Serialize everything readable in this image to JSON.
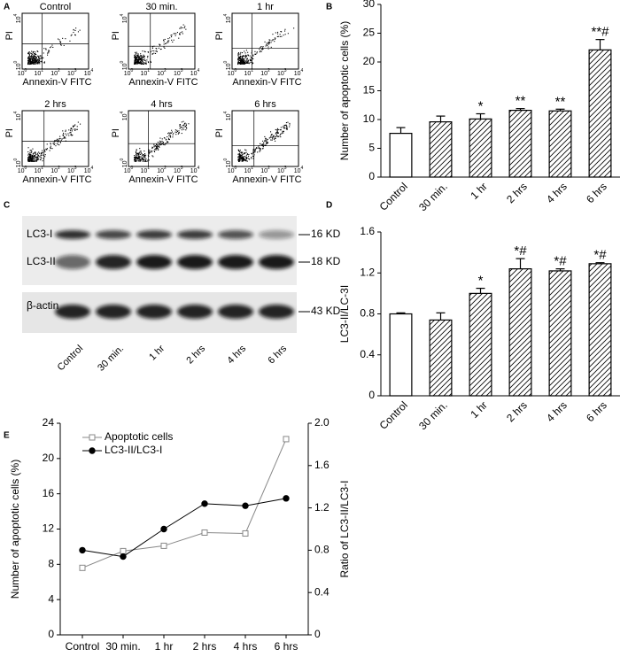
{
  "panel_labels": [
    "A",
    "B",
    "C",
    "D",
    "E"
  ],
  "flow_cytometry": {
    "plots": [
      "Control",
      "30 min.",
      "1 hr",
      "2 hrs",
      "4 hrs",
      "6 hrs"
    ],
    "x_label": "Annexin-V FITC",
    "y_label": "PI",
    "tick_base": "10",
    "tick_exponents": [
      "0",
      "1",
      "2",
      "3",
      "4"
    ]
  },
  "western_blot": {
    "bands": [
      "LC3-I",
      "LC3-II",
      "β-actin"
    ],
    "sizes": [
      "16 KD",
      "18 KD",
      "43 KD"
    ],
    "lanes": [
      "Control",
      "30 min.",
      "1 hr",
      "2 hrs",
      "4 hrs",
      "6 hrs"
    ]
  },
  "chart_data": [
    {
      "type": "bar",
      "ylabel": "Number of apoptotic cells (%)",
      "categories": [
        "Control",
        "30 min.",
        "1 hr",
        "2 hrs",
        "4 hrs",
        "6 hrs"
      ],
      "values": [
        7.6,
        9.6,
        10.1,
        11.6,
        11.5,
        22.1
      ],
      "errors": [
        1.0,
        1.0,
        0.9,
        0.3,
        0.3,
        1.8
      ],
      "annotations": [
        null,
        null,
        "*",
        "**",
        "**",
        "**#"
      ],
      "fill_styles": [
        "plain",
        "hatched",
        "hatched",
        "hatched",
        "hatched",
        "hatched"
      ],
      "color": "#000000",
      "ylim": [
        0,
        30
      ],
      "yticks": [
        0,
        5,
        10,
        15,
        20,
        25,
        30
      ]
    },
    {
      "type": "bar",
      "ylabel": "LC3-II/LC-3I",
      "categories": [
        "Control",
        "30 min.",
        "1 hr",
        "2 hrs",
        "4 hrs",
        "6 hrs"
      ],
      "values": [
        0.8,
        0.74,
        1.0,
        1.24,
        1.22,
        1.29
      ],
      "errors": [
        0.01,
        0.07,
        0.05,
        0.1,
        0.02,
        0.01
      ],
      "annotations": [
        null,
        null,
        "*",
        "*#",
        "*#",
        "*#"
      ],
      "fill_styles": [
        "plain",
        "hatched",
        "hatched",
        "hatched",
        "hatched",
        "hatched"
      ],
      "color": "#000000",
      "ylim": [
        0,
        1.6
      ],
      "yticks": [
        0,
        0.4,
        0.8,
        1.2,
        1.6
      ]
    },
    {
      "type": "line",
      "ylabel": "Number of apoptotic cells (%)",
      "y2label": "Ratio of LC3-II/LC3-I",
      "categories": [
        "Control",
        "30 min.",
        "1 hr",
        "2 hrs",
        "4 hrs",
        "6 hrs"
      ],
      "series": [
        {
          "name": "Apoptotic cells",
          "color": "#888888",
          "marker": "square-open",
          "values": [
            7.6,
            9.5,
            10.1,
            11.6,
            11.5,
            22.2
          ]
        },
        {
          "name": "LC3-II/LC3-I",
          "color": "#000000",
          "marker": "circle-filled",
          "axis": "y2",
          "values": [
            0.8,
            0.74,
            1.0,
            1.24,
            1.22,
            1.29
          ]
        }
      ],
      "ylim": [
        0,
        24
      ],
      "yticks": [
        0,
        4,
        8,
        12,
        16,
        20,
        24
      ],
      "y2lim": [
        0,
        2
      ],
      "y2ticks": [
        0,
        0.4,
        0.8,
        1.2,
        1.6,
        {
          "value": 2,
          "label": "2.0"
        }
      ],
      "legend": "upper left"
    }
  ]
}
